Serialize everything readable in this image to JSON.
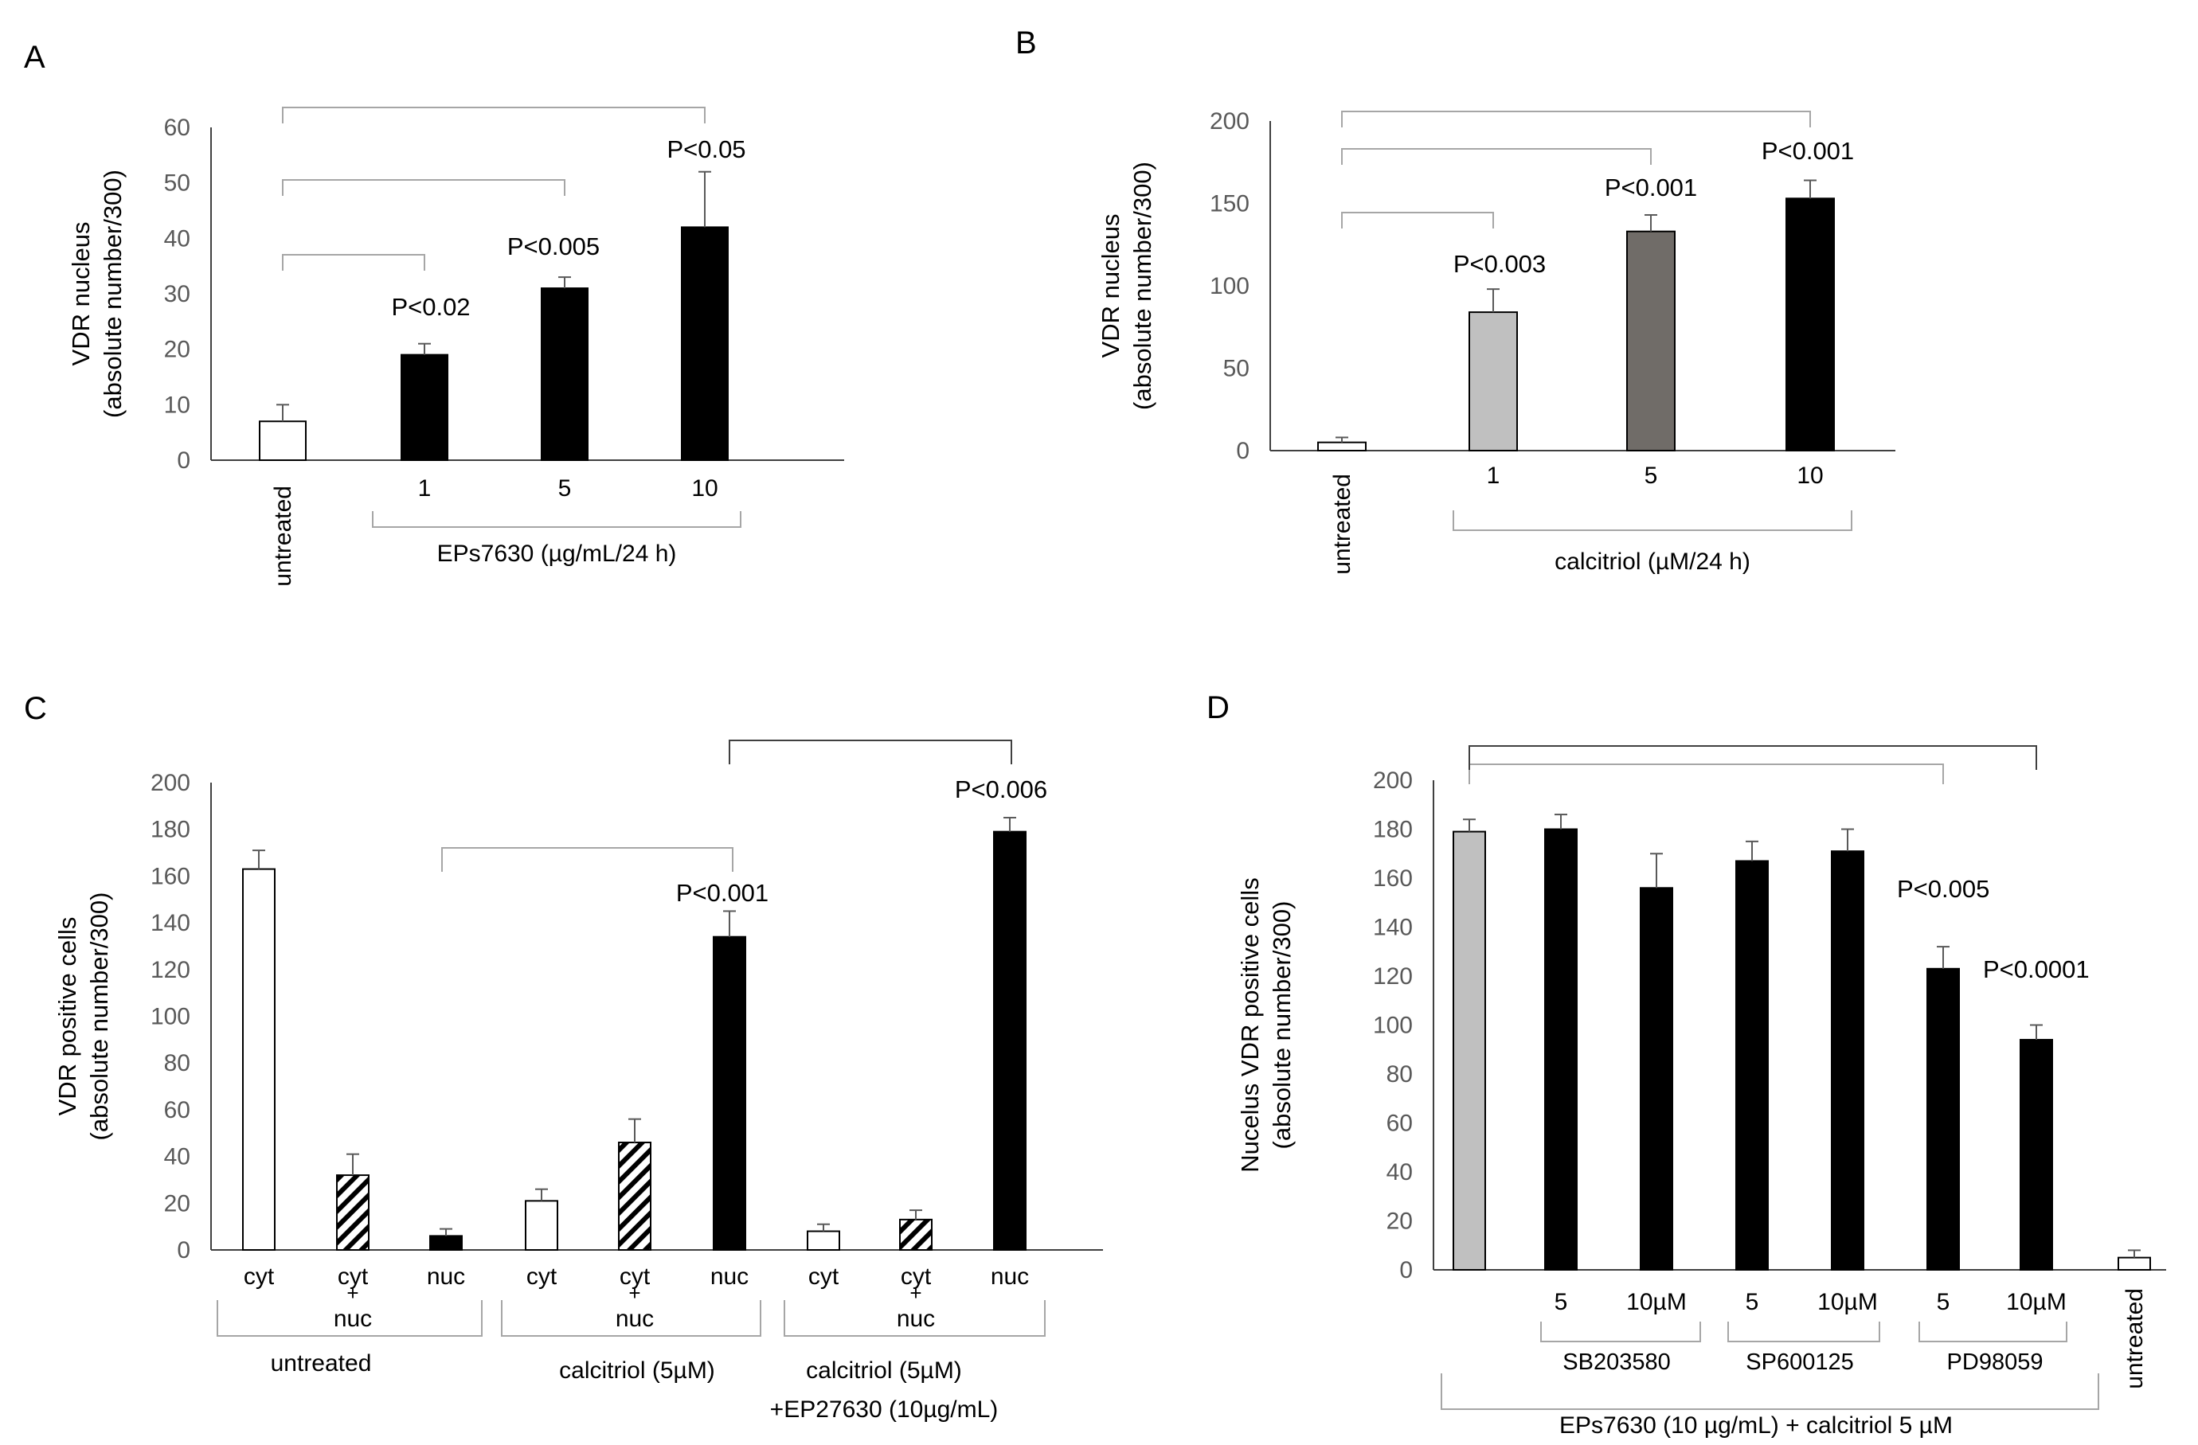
{
  "chart_data": [
    {
      "panel": "A",
      "type": "bar",
      "ylabel_line1": "VDR nucleus",
      "ylabel_line2": "(absolute number/300)",
      "ylim": [
        0,
        60
      ],
      "yticks": [
        0,
        10,
        20,
        30,
        40,
        50,
        60
      ],
      "categories": [
        "untreated",
        "1",
        "5",
        "10"
      ],
      "values": [
        7,
        19,
        31,
        42
      ],
      "errors": [
        3,
        2,
        2,
        10
      ],
      "fills": [
        "#ffffff",
        "#000000",
        "#000000",
        "#000000"
      ],
      "group_label": "EPs7630 (µg/mL/24 h)",
      "pvalues": [
        "P<0.02",
        "P<0.005",
        "P<0.05"
      ]
    },
    {
      "panel": "B",
      "type": "bar",
      "ylabel_line1": "VDR nucleus",
      "ylabel_line2": "(absolute number/300)",
      "ylim": [
        0,
        200
      ],
      "yticks": [
        0,
        50,
        100,
        150,
        200
      ],
      "categories": [
        "untreated",
        "1",
        "5",
        "10"
      ],
      "values": [
        5,
        84,
        133,
        153
      ],
      "errors": [
        3,
        14,
        10,
        11
      ],
      "fills": [
        "#ffffff",
        "#c0c0c0",
        "#706c68",
        "#000000"
      ],
      "group_label": "calcitriol (µM/24 h)",
      "pvalues": [
        "P<0.003",
        "P<0.001",
        "P<0.001"
      ]
    },
    {
      "panel": "C",
      "type": "bar",
      "ylabel_line1": "VDR positive cells",
      "ylabel_line2": "(absolute number/300)",
      "ylim": [
        0,
        200
      ],
      "yticks": [
        0,
        20,
        40,
        60,
        80,
        100,
        120,
        140,
        160,
        180,
        200
      ],
      "categories": [
        "cyt",
        "cyt+nuc",
        "nuc",
        "cyt",
        "cyt+nuc",
        "nuc",
        "cyt",
        "cyt+nuc",
        "nuc"
      ],
      "cat_top": [
        "cyt",
        "cyt",
        "nuc",
        "cyt",
        "cyt",
        "nuc",
        "cyt",
        "cyt",
        "nuc"
      ],
      "cat_bottom": [
        "",
        "nuc",
        "",
        "",
        "nuc",
        "",
        "",
        "nuc",
        ""
      ],
      "values": [
        163,
        32,
        6,
        21,
        46,
        134,
        8,
        13,
        179
      ],
      "errors": [
        8,
        9,
        3,
        5,
        10,
        11,
        3,
        4,
        6
      ],
      "fills": [
        "white",
        "hatch",
        "black",
        "white",
        "hatch",
        "black",
        "white",
        "hatch",
        "black"
      ],
      "groups": [
        "untreated",
        "calcitriol (5µM)",
        "calcitriol (5µM)"
      ],
      "group3_line2": "+EP27630 (10µg/mL)",
      "pvalues": [
        "P<0.001",
        "P<0.006"
      ]
    },
    {
      "panel": "D",
      "type": "bar",
      "ylabel_line1": "Nucelus VDR positive cells",
      "ylabel_line2": "(absolute number/300)",
      "ylim": [
        0,
        200
      ],
      "yticks": [
        0,
        20,
        40,
        60,
        80,
        100,
        120,
        140,
        160,
        180,
        200
      ],
      "categories": [
        "",
        "5",
        "10µM",
        "5",
        "10µM",
        "5",
        "10µM",
        "untreated"
      ],
      "values": [
        179,
        180,
        156,
        167,
        171,
        123,
        94,
        5
      ],
      "errors": [
        5,
        6,
        14,
        8,
        9,
        9,
        6,
        3
      ],
      "fills": [
        "#c0c0c0",
        "#000000",
        "#000000",
        "#000000",
        "#000000",
        "#000000",
        "#000000",
        "#ffffff"
      ],
      "inhibitors": [
        "SB203580",
        "SP600125",
        "PD98059"
      ],
      "group_label": "EPs7630 (10 µg/mL) + calcitriol 5 µM",
      "pvalues": [
        "P<0.005",
        "P<0.0001"
      ]
    }
  ],
  "panel_letters": [
    "A",
    "B",
    "C",
    "D"
  ]
}
